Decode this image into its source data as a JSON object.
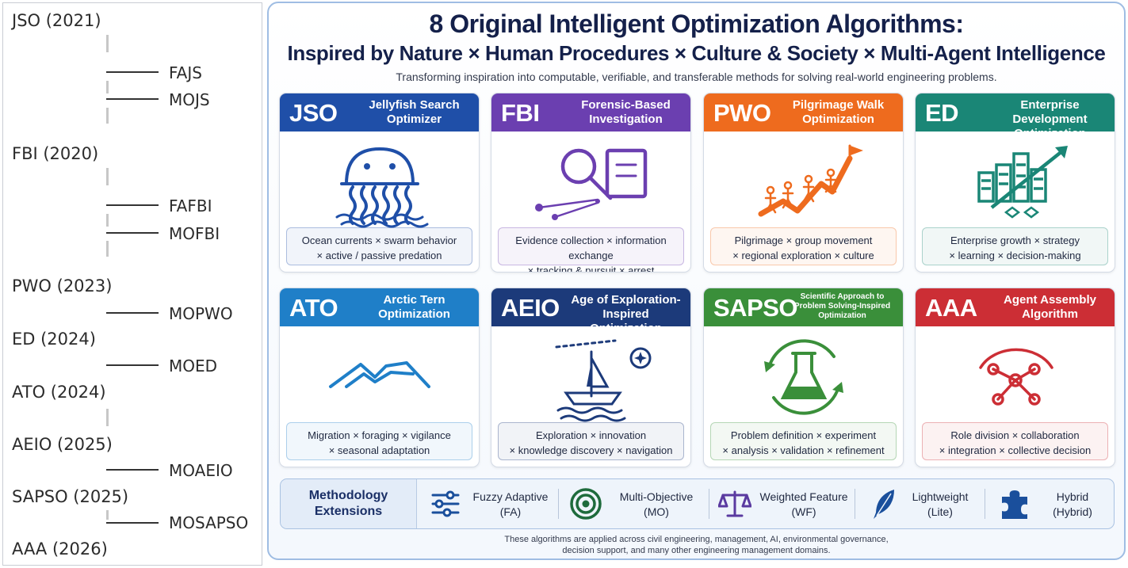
{
  "timeline": {
    "algorithms": [
      {
        "label": "JSO (2021)",
        "variants": [
          "FAJS",
          "MOJS"
        ]
      },
      {
        "label": "FBI (2020)",
        "variants": [
          "FAFBI",
          "MOFBI"
        ]
      },
      {
        "label": "PWO (2023)",
        "variants": [
          "MOPWO"
        ]
      },
      {
        "label": "ED (2024)",
        "variants": [
          "MOED"
        ]
      },
      {
        "label": "ATO (2024)",
        "variants": []
      },
      {
        "label": "AEIO (2025)",
        "variants": [
          "MOAEIO"
        ]
      },
      {
        "label": "SAPSO (2025)",
        "variants": [
          "MOSAPSO"
        ]
      },
      {
        "label": "AAA (2026)",
        "variants": []
      }
    ]
  },
  "panel": {
    "title_line1": "8 Original Intelligent Optimization Algorithms:",
    "title_line2": "Inspired by Nature × Human Procedures × Culture & Society × Multi-Agent Intelligence",
    "tagline": "Transforming inspiration into computable, verifiable, and transferable methods for solving real-world engineering problems.",
    "cards": [
      {
        "abbr": "JSO",
        "name_lines": [
          "Jellyfish Search",
          "Optimizer"
        ],
        "color": "#1f4fa8",
        "icon": "jellyfish-icon",
        "desc_lines": [
          "Ocean currents × swarm behavior",
          "× active / passive predation"
        ]
      },
      {
        "abbr": "FBI",
        "name_lines": [
          "Forensic-Based",
          "Investigation"
        ],
        "color": "#6b3fb0",
        "icon": "magnifier-evidence-icon",
        "desc_lines": [
          "Evidence collection × information exchange",
          "× tracking & pursuit × arrest"
        ]
      },
      {
        "abbr": "PWO",
        "name_lines": [
          "Pilgrimage Walk",
          "Optimization"
        ],
        "color": "#ee6b1e",
        "icon": "pilgrims-path-icon",
        "desc_lines": [
          "Pilgrimage × group movement",
          "× regional exploration × culture"
        ]
      },
      {
        "abbr": "ED",
        "name_lines": [
          "Enterprise Development",
          "Optimization"
        ],
        "color": "#1a8676",
        "icon": "growth-chart-icon",
        "desc_lines": [
          "Enterprise growth × strategy",
          "× learning × decision-making"
        ]
      },
      {
        "abbr": "ATO",
        "name_lines": [
          "Arctic Tern",
          "Optimization"
        ],
        "color": "#1f7fc8",
        "icon": "tern-wings-icon",
        "desc_lines": [
          "Migration × foraging × vigilance",
          "× seasonal adaptation"
        ]
      },
      {
        "abbr": "AEIO",
        "name_lines": [
          "Age of Exploration-",
          "Inspired Optimization"
        ],
        "color": "#1c3a7a",
        "icon": "sailing-ship-icon",
        "desc_lines": [
          "Exploration × innovation",
          "× knowledge discovery × navigation"
        ]
      },
      {
        "abbr": "SAPSO",
        "name_lines": [
          "Scientific Approach to",
          "Problem Solving-Inspired",
          "Optimization"
        ],
        "color": "#3a8f3a",
        "icon": "flask-cycle-icon",
        "desc_lines": [
          "Problem definition × experiment",
          "× analysis × validation × refinement"
        ]
      },
      {
        "abbr": "AAA",
        "name_lines": [
          "Agent Assembly",
          "Algorithm"
        ],
        "color": "#cc2e35",
        "icon": "agent-network-icon",
        "desc_lines": [
          "Role division × collaboration",
          "× integration × collective decision"
        ]
      }
    ],
    "extensions": {
      "title_lines": [
        "Methodology",
        "Extensions"
      ],
      "items": [
        {
          "name": "Fuzzy Adaptive",
          "abbr": "(FA)",
          "icon": "sliders-icon"
        },
        {
          "name": "Multi-Objective",
          "abbr": "(MO)",
          "icon": "target-icon"
        },
        {
          "name": "Weighted Feature",
          "abbr": "(WF)",
          "icon": "scales-icon"
        },
        {
          "name": "Lightweight",
          "abbr": "(Lite)",
          "icon": "feather-icon"
        },
        {
          "name": "Hybrid",
          "abbr": "(Hybrid)",
          "icon": "puzzle-icon"
        }
      ]
    },
    "footnote_lines": [
      "These algorithms are applied across civil engineering, management, AI, environmental governance,",
      "decision support, and many other engineering management domains."
    ]
  }
}
